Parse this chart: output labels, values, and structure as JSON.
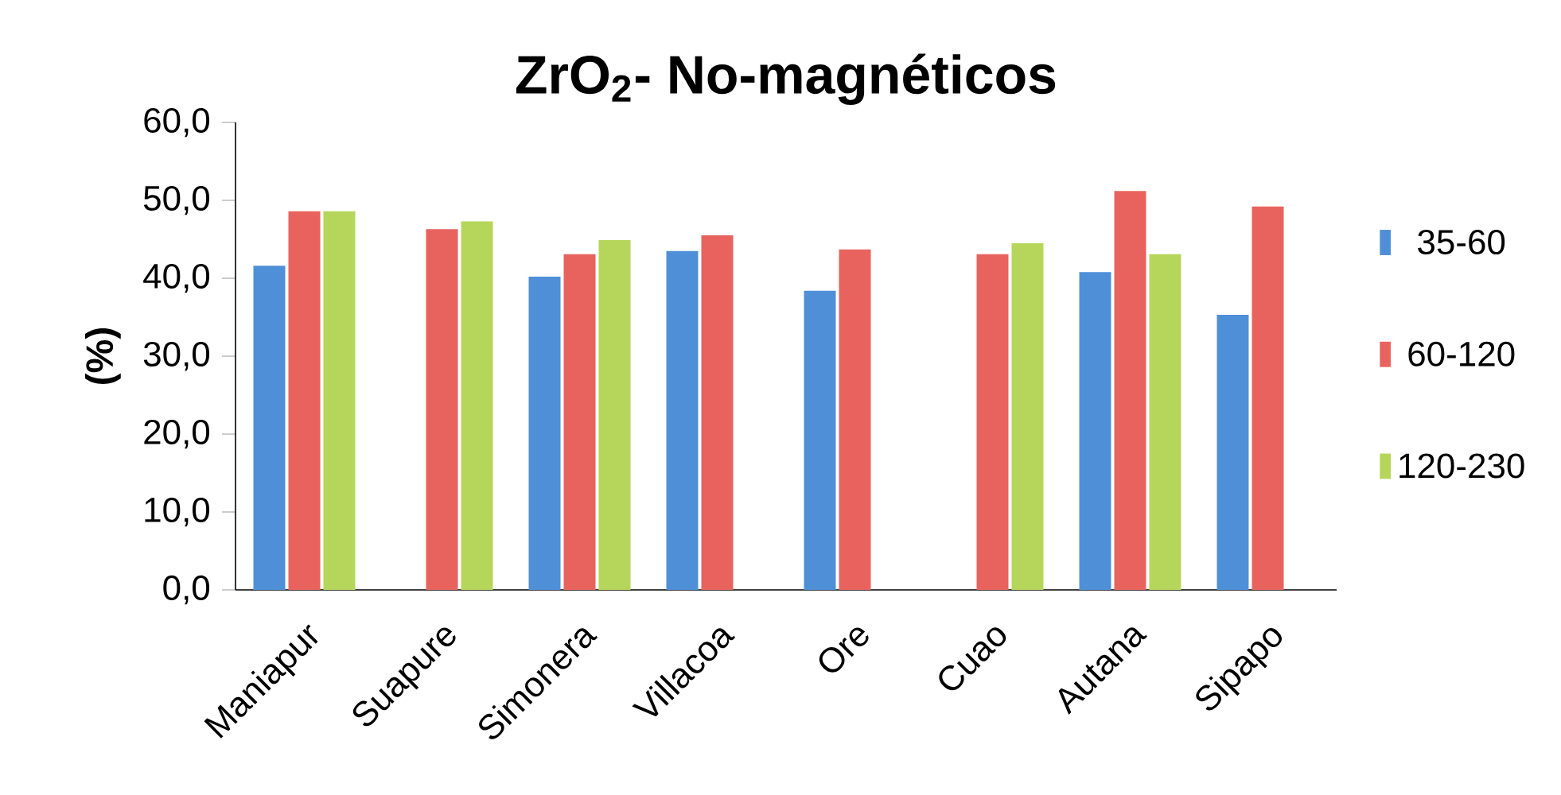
{
  "chart_data": {
    "type": "bar",
    "title": "ZrO$_{2}$- No-magnéticos",
    "ylabel": "(%)",
    "categories": [
      "Maniapur",
      "Suapure",
      "Simonera",
      "Villacoa",
      "Ore",
      "Cuao",
      "Autana",
      "Sipapo"
    ],
    "series": [
      {
        "name": "35-60",
        "color": "#4f8fd8",
        "values": [
          41.6,
          null,
          40.2,
          43.5,
          38.4,
          null,
          40.8,
          35.3
        ]
      },
      {
        "name": "60-120",
        "color": "#e8635e",
        "values": [
          48.6,
          46.3,
          43.1,
          45.5,
          43.7,
          43.1,
          51.2,
          49.2
        ]
      },
      {
        "name": "120-230",
        "color": "#b5d65a",
        "values": [
          48.6,
          47.3,
          44.9,
          null,
          null,
          44.5,
          43.1,
          null
        ]
      }
    ],
    "ylim": [
      0,
      60
    ],
    "yticks": [
      {
        "value": 0,
        "label": "0,0"
      },
      {
        "value": 10,
        "label": "10,0"
      },
      {
        "value": 20,
        "label": "20,0"
      },
      {
        "value": 30,
        "label": "30,0"
      },
      {
        "value": 40,
        "label": "40,0"
      },
      {
        "value": 50,
        "label": "50,0"
      },
      {
        "value": 60,
        "label": "60,0"
      }
    ],
    "legend": "right",
    "grid": false
  }
}
